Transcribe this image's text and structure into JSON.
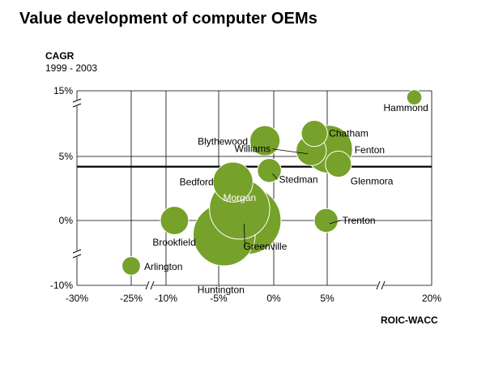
{
  "title": "Value development of computer OEMs",
  "y_axis": {
    "label": "CAGR",
    "sublabel": "1999 - 2003"
  },
  "x_axis": {
    "label": "ROIC-WACC"
  },
  "chart_data": {
    "type": "scatter",
    "title": "Value development of computer OEMs",
    "xlabel": "ROIC-WACC",
    "ylabel": "CAGR 1999 - 2003",
    "x_ticks": [
      "-30%",
      "-25%",
      "-10%",
      "-5%",
      "0%",
      "5%",
      "20%"
    ],
    "y_ticks": [
      "15%",
      "5%",
      "0%",
      "-10%"
    ],
    "x_axis_breaks": [
      "between -30% and -25%",
      "between -25% and -10%",
      "between 5% and 20%"
    ],
    "y_axis_breaks": [
      "between 5% and 15%",
      "between -10% and 0%"
    ],
    "reference_line_y": 4.2,
    "bubble_color": "#76A12A",
    "label_color": "#000000",
    "points": [
      {
        "name": "Hammond",
        "x": 17.5,
        "y": 14.0,
        "size": 1
      },
      {
        "name": "Chatham",
        "x": 3.8,
        "y": 8.5,
        "size": 3
      },
      {
        "name": "Blythewood",
        "x": -0.8,
        "y": 7.4,
        "size": 4
      },
      {
        "name": "Fenton",
        "x": 5.2,
        "y": 6.1,
        "size": 10
      },
      {
        "name": "Williams",
        "x": 3.5,
        "y": 5.9,
        "size": 4
      },
      {
        "name": "Glenmora",
        "x": 6.6,
        "y": 4.4,
        "size": 3
      },
      {
        "name": "Stedman",
        "x": -0.4,
        "y": 3.9,
        "size": 2.5
      },
      {
        "name": "Bedford",
        "x": -3.7,
        "y": 3.0,
        "size": 7
      },
      {
        "name": "Morgan",
        "x": -3.1,
        "y": 0.9,
        "size": 16
      },
      {
        "name": "Greenville",
        "x": -2.4,
        "y": 0.0,
        "size": 20
      },
      {
        "name": "Trenton",
        "x": 4.9,
        "y": 0.0,
        "size": 2.5
      },
      {
        "name": "Brookfield",
        "x": -9.2,
        "y": 0.0,
        "size": 3.5
      },
      {
        "name": "Huntington",
        "x": -4.5,
        "y": -2.2,
        "size": 17
      },
      {
        "name": "Arlington",
        "x": -25.0,
        "y": -7.0,
        "size": 1.5
      }
    ]
  }
}
